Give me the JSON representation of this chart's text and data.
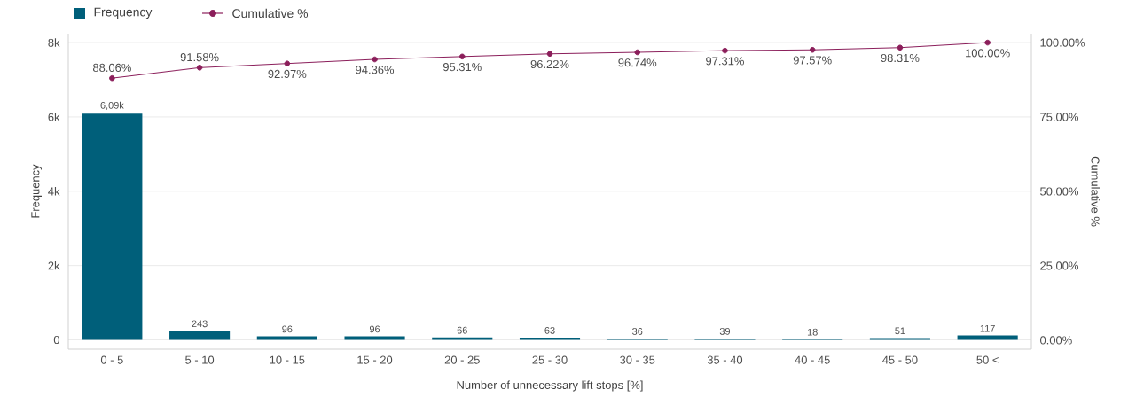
{
  "chart_data": {
    "type": "bar",
    "categories": [
      "0 - 5",
      "5 - 10",
      "10 - 15",
      "15 - 20",
      "20 - 25",
      "25 - 30",
      "30 - 35",
      "35 - 40",
      "40 - 45",
      "45 - 50",
      "50 <"
    ],
    "xlabel": "Number of unnecessary lift stops [%]",
    "ylabel": "Frequency",
    "y2label": "Cumulative %",
    "ylim": [
      -250,
      8240
    ],
    "yticks": [
      0,
      {
        "value": 2000,
        "label": "2k"
      },
      {
        "value": 4000,
        "label": "4k"
      },
      {
        "value": 6000,
        "label": "6k"
      },
      {
        "value": 8000,
        "label": "8k"
      }
    ],
    "y2lim": [
      -3,
      103
    ],
    "y2ticks": [
      {
        "value": 0,
        "label": "0.00%"
      },
      {
        "value": 25,
        "label": "25.00%"
      },
      {
        "value": 50,
        "label": "50.00%"
      },
      {
        "value": 75,
        "label": "75.00%"
      },
      {
        "value": 100,
        "label": "100.00%"
      }
    ],
    "grid": "y",
    "legend": "top left",
    "series": [
      {
        "name": "Frequency",
        "color": "#005f7a",
        "values": [
          6090,
          243,
          96,
          96,
          66,
          63,
          36,
          39,
          18,
          51,
          117
        ],
        "value_labels": [
          "6,09k",
          "243",
          "96",
          "96",
          "66",
          "63",
          "36",
          "39",
          "18",
          "51",
          "117"
        ]
      },
      {
        "name": "Cumulative %",
        "type": "line",
        "axis": "y2",
        "color": "#8b1e5a",
        "marker": "circle",
        "values": [
          88.06,
          91.58,
          92.97,
          94.36,
          95.31,
          96.22,
          96.74,
          97.31,
          97.57,
          98.31,
          100.0
        ],
        "value_labels": [
          "88.06%",
          "91.58%",
          "92.97%",
          "94.36%",
          "95.31%",
          "96.22%",
          "96.74%",
          "97.31%",
          "97.57%",
          "98.31%",
          "100.00%"
        ]
      }
    ]
  }
}
